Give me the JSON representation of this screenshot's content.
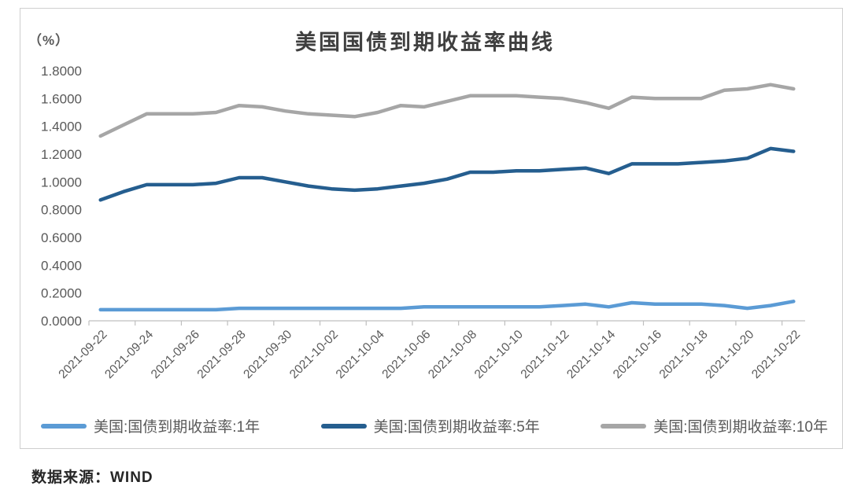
{
  "header": {
    "title": "美国国债到期收益率曲线",
    "unit_label": "（%）"
  },
  "source_note": "数据来源：WIND",
  "chart_data": {
    "type": "line",
    "title": "美国国债到期收益率曲线",
    "unit": "（%）",
    "grid": false,
    "legend_position": "bottom",
    "ylim": [
      0.0,
      1.8
    ],
    "y_tick_labels": [
      "0.0000",
      "0.2000",
      "0.4000",
      "0.6000",
      "0.8000",
      "1.0000",
      "1.2000",
      "1.4000",
      "1.6000",
      "1.8000"
    ],
    "x_tick_labels": [
      "2021-09-22",
      "2021-09-24",
      "2021-09-26",
      "2021-09-28",
      "2021-09-30",
      "2021-10-02",
      "2021-10-04",
      "2021-10-06",
      "2021-10-08",
      "2021-10-10",
      "2021-10-12",
      "2021-10-14",
      "2021-10-16",
      "2021-10-18",
      "2021-10-20",
      "2021-10-22"
    ],
    "x": [
      "2021-09-22",
      "2021-09-23",
      "2021-09-24",
      "2021-09-25",
      "2021-09-26",
      "2021-09-27",
      "2021-09-28",
      "2021-09-29",
      "2021-09-30",
      "2021-10-01",
      "2021-10-02",
      "2021-10-03",
      "2021-10-04",
      "2021-10-05",
      "2021-10-06",
      "2021-10-07",
      "2021-10-08",
      "2021-10-09",
      "2021-10-10",
      "2021-10-11",
      "2021-10-12",
      "2021-10-13",
      "2021-10-14",
      "2021-10-15",
      "2021-10-16",
      "2021-10-17",
      "2021-10-18",
      "2021-10-19",
      "2021-10-20",
      "2021-10-21",
      "2021-10-22"
    ],
    "series": [
      {
        "name": "美国:国债到期收益率:1年",
        "color": "#5B9BD5",
        "values": [
          0.08,
          0.08,
          0.08,
          0.08,
          0.08,
          0.08,
          0.09,
          0.09,
          0.09,
          0.09,
          0.09,
          0.09,
          0.09,
          0.09,
          0.1,
          0.1,
          0.1,
          0.1,
          0.1,
          0.1,
          0.11,
          0.12,
          0.1,
          0.13,
          0.12,
          0.12,
          0.12,
          0.11,
          0.09,
          0.11,
          0.14
        ]
      },
      {
        "name": "美国:国债到期收益率:5年",
        "color": "#255E8F",
        "values": [
          0.87,
          0.93,
          0.98,
          0.98,
          0.98,
          0.99,
          1.03,
          1.03,
          1.0,
          0.97,
          0.95,
          0.94,
          0.95,
          0.97,
          0.99,
          1.02,
          1.07,
          1.07,
          1.08,
          1.08,
          1.09,
          1.1,
          1.06,
          1.13,
          1.13,
          1.13,
          1.14,
          1.15,
          1.17,
          1.24,
          1.22
        ]
      },
      {
        "name": "美国:国债到期收益率:10年",
        "color": "#A6A6A6",
        "values": [
          1.33,
          1.41,
          1.49,
          1.49,
          1.49,
          1.5,
          1.55,
          1.54,
          1.51,
          1.49,
          1.48,
          1.47,
          1.5,
          1.55,
          1.54,
          1.58,
          1.62,
          1.62,
          1.62,
          1.61,
          1.6,
          1.57,
          1.53,
          1.61,
          1.6,
          1.6,
          1.6,
          1.66,
          1.67,
          1.7,
          1.67
        ]
      }
    ]
  }
}
